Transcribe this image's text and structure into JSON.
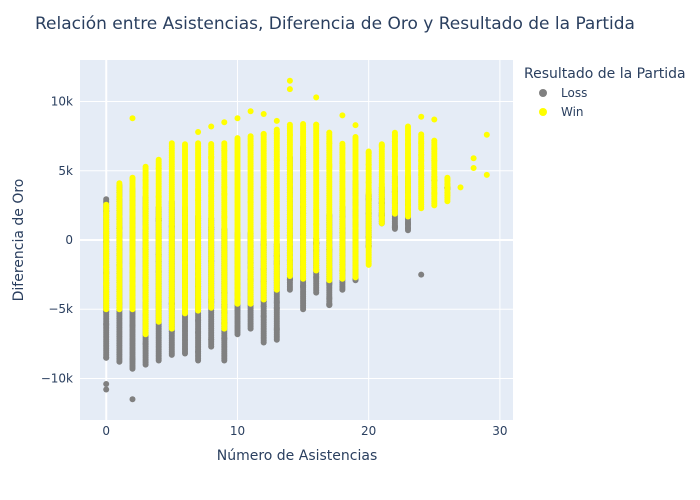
{
  "chart_data": {
    "type": "scatter",
    "title": "Relación entre Asistencias, Diferencia de Oro y Resultado de la Partida",
    "xlabel": "Número de Asistencias",
    "ylabel": "Diferencia de Oro",
    "xlim": [
      -2,
      31
    ],
    "ylim": [
      -13000,
      13000
    ],
    "x_ticks": [
      0,
      10,
      20,
      30
    ],
    "x_tick_labels": [
      "0",
      "10",
      "20",
      "30"
    ],
    "y_ticks": [
      -10000,
      -5000,
      0,
      5000,
      10000
    ],
    "y_tick_labels": [
      "−10k",
      "−5k",
      "0",
      "5k",
      "10k"
    ],
    "grid": true,
    "legend_position": "top-right",
    "legend_title": "Resultado de la Partida",
    "series": [
      {
        "name": "Loss",
        "color": "#808080",
        "ranges": [
          [
            0,
            -8500,
            3000
          ],
          [
            1,
            -8800,
            4000
          ],
          [
            2,
            -9300,
            3700
          ],
          [
            3,
            -9000,
            3200
          ],
          [
            4,
            -8700,
            2400
          ],
          [
            5,
            -8300,
            2800
          ],
          [
            6,
            -8200,
            2400
          ],
          [
            7,
            -8700,
            1800
          ],
          [
            8,
            -7700,
            1600
          ],
          [
            9,
            -8700,
            800
          ],
          [
            10,
            -6800,
            600
          ],
          [
            11,
            -6400,
            500
          ],
          [
            12,
            -7400,
            100
          ],
          [
            13,
            -7200,
            -300
          ],
          [
            14,
            -3600,
            6000
          ],
          [
            15,
            -5000,
            6700
          ],
          [
            16,
            -3800,
            200
          ],
          [
            17,
            -4700,
            1800
          ],
          [
            18,
            -3600,
            2400
          ],
          [
            19,
            -2900,
            4300
          ],
          [
            20,
            -500,
            3300
          ],
          [
            21,
            1200,
            3800
          ],
          [
            22,
            800,
            4600
          ],
          [
            23,
            700,
            4700
          ],
          [
            26,
            3700,
            3800
          ]
        ],
        "points": [
          {
            "x": 0,
            "y": -10400
          },
          {
            "x": 0,
            "y": -10800
          },
          {
            "x": 2,
            "y": -11500
          },
          {
            "x": 24,
            "y": -2500
          },
          {
            "x": 20,
            "y": -500
          },
          {
            "x": 25,
            "y": 4300
          },
          {
            "x": 26,
            "y": 3700
          }
        ]
      },
      {
        "name": "Win",
        "color": "#ffff00",
        "ranges": [
          [
            0,
            -5000,
            2600
          ],
          [
            1,
            -5000,
            4100
          ],
          [
            2,
            -5000,
            4500
          ],
          [
            3,
            -6800,
            5300
          ],
          [
            4,
            -5900,
            5800
          ],
          [
            5,
            -6400,
            7000
          ],
          [
            6,
            -5300,
            7000
          ],
          [
            7,
            -5100,
            7000
          ],
          [
            8,
            -4900,
            7000
          ],
          [
            9,
            -6400,
            7000
          ],
          [
            10,
            -4600,
            7400
          ],
          [
            11,
            -4600,
            7500
          ],
          [
            12,
            -4300,
            7700
          ],
          [
            13,
            -3600,
            8000
          ],
          [
            14,
            -2600,
            8400
          ],
          [
            15,
            -2800,
            8400
          ],
          [
            16,
            -2200,
            8400
          ],
          [
            17,
            -2900,
            7800
          ],
          [
            18,
            -2800,
            7000
          ],
          [
            19,
            -2700,
            7500
          ],
          [
            20,
            -1800,
            6400
          ],
          [
            21,
            1200,
            7000
          ],
          [
            22,
            1900,
            7800
          ],
          [
            23,
            1700,
            8200
          ],
          [
            24,
            2300,
            7700
          ],
          [
            25,
            2500,
            7200
          ],
          [
            26,
            2800,
            4600
          ]
        ],
        "points": [
          {
            "x": 2,
            "y": 8800
          },
          {
            "x": 7,
            "y": 7800
          },
          {
            "x": 8,
            "y": 8200
          },
          {
            "x": 9,
            "y": 8500
          },
          {
            "x": 10,
            "y": 8800
          },
          {
            "x": 11,
            "y": 9300
          },
          {
            "x": 12,
            "y": 9100
          },
          {
            "x": 13,
            "y": 8600
          },
          {
            "x": 14,
            "y": 11500
          },
          {
            "x": 14,
            "y": 10900
          },
          {
            "x": 16,
            "y": 10300
          },
          {
            "x": 18,
            "y": 9000
          },
          {
            "x": 19,
            "y": 8300
          },
          {
            "x": 24,
            "y": 8900
          },
          {
            "x": 25,
            "y": 8700
          },
          {
            "x": 27,
            "y": 3800
          },
          {
            "x": 28,
            "y": 5900
          },
          {
            "x": 28,
            "y": 5200
          },
          {
            "x": 29,
            "y": 7600
          },
          {
            "x": 29,
            "y": 4700
          }
        ]
      }
    ]
  }
}
